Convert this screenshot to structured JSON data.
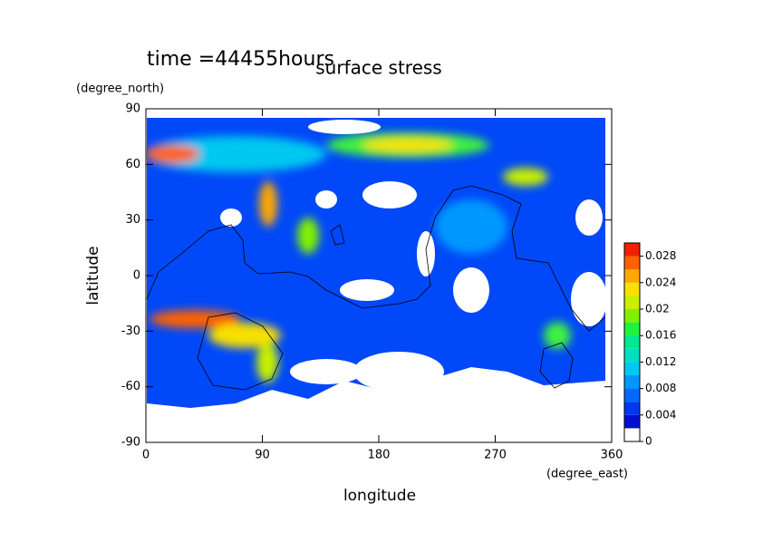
{
  "chart_data": {
    "type": "contour",
    "title": "surface stress",
    "subtitle": "time =44455hours",
    "xlabel": "longitude",
    "xunit": "(degree_east)",
    "ylabel": "latitude",
    "yunit": "(degree_north)",
    "xlim": [
      0,
      360
    ],
    "xticks": [
      0,
      90,
      180,
      270,
      360
    ],
    "ylim": [
      -90,
      90
    ],
    "yticks": [
      -90,
      -60,
      -30,
      0,
      30,
      60,
      90
    ],
    "colorbar": {
      "lim": [
        0,
        0.03
      ],
      "ticks": [
        0,
        0.004,
        0.008,
        0.012,
        0.016,
        0.02,
        0.024,
        0.028
      ],
      "levels": [
        0,
        0.002,
        0.004,
        0.006,
        0.008,
        0.01,
        0.012,
        0.014,
        0.016,
        0.018,
        0.02,
        0.022,
        0.024,
        0.026,
        0.028,
        0.03
      ],
      "colors": [
        "#ffffff",
        "#0010d0",
        "#0038f0",
        "#0068ff",
        "#0098ff",
        "#00c8f0",
        "#00e0c0",
        "#00e890",
        "#20f040",
        "#80f000",
        "#c8f000",
        "#f8e000",
        "#ffa800",
        "#ff6000",
        "#f02000"
      ]
    }
  }
}
